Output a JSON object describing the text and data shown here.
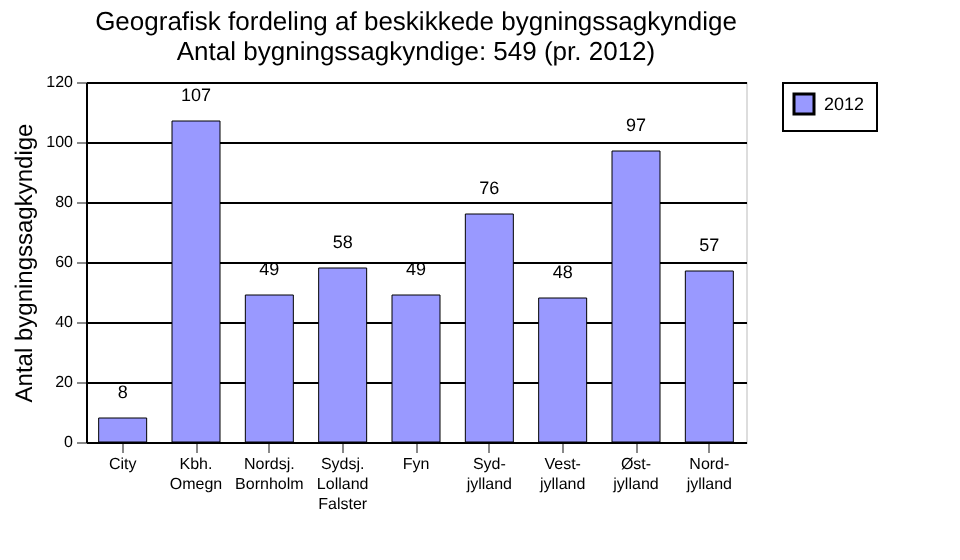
{
  "chart_data": {
    "type": "bar",
    "title": [
      "Geografisk fordeling af beskikkede bygningssagkyndige",
      "Antal bygningssagkyndige: 549 (pr. 2012)"
    ],
    "ylabel": "Antal bygningssagkyndige",
    "categories": [
      "City",
      "Kbh.\nOmegn",
      "Nordsj.\nBornholm",
      "Sydsj.\nLolland\nFalster",
      "Fyn",
      "Syd-\njylland",
      "Vest-\njylland",
      "Øst-\njylland",
      "Nord-\njylland"
    ],
    "series": [
      {
        "name": "2012",
        "color": "#9999ff",
        "values": [
          8,
          107,
          49,
          58,
          49,
          76,
          48,
          97,
          57
        ]
      }
    ],
    "ylim": [
      0,
      120
    ],
    "yticks": [
      0,
      20,
      40,
      60,
      80,
      100,
      120
    ],
    "grid": "y",
    "legend": "right",
    "data_labels": true
  }
}
